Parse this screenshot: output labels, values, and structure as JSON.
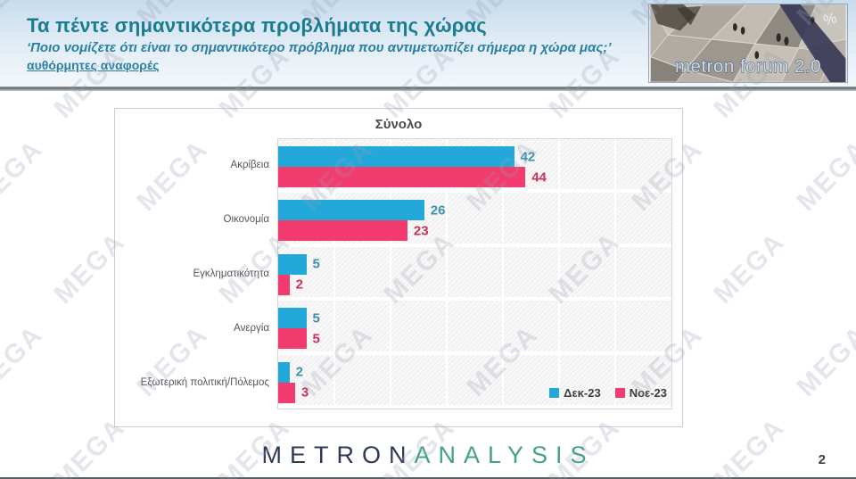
{
  "header": {
    "title": "Τα πέντε σημαντικότερα προβλήματα της χώρας",
    "subtitle": "‘Ποιο νομίζετε ότι είναι το σημαντικότερο πρόβλημα που αντιμετωπίζει σήμερα η χώρα μας;’",
    "note": "αυθόρμητες αναφορές",
    "brand": {
      "caption": "metron forum 2.0",
      "percent_symbol": "%"
    }
  },
  "chart_data": {
    "type": "bar",
    "orientation": "horizontal",
    "title": "Σύνολο",
    "categories": [
      "Ακρίβεια",
      "Οικονομία",
      "Εγκληματικότητα",
      "Ανεργία",
      "Εξωτερική πολιτική/Πόλεμος"
    ],
    "series": [
      {
        "name": "Δεκ-23",
        "color": "#22a9da",
        "label_color": "#3a92ae",
        "values": [
          42,
          26,
          5,
          5,
          2
        ]
      },
      {
        "name": "Νοε-23",
        "color": "#f23b6e",
        "label_color": "#ca3158",
        "values": [
          44,
          23,
          2,
          5,
          3
        ]
      }
    ],
    "xlim": [
      0,
      70
    ],
    "gridline_step": 10,
    "grid": true,
    "legend_position": "bottom-right"
  },
  "footer": {
    "logo_part1": "METRON",
    "logo_part2": "ANALYSIS",
    "page_number": "2"
  },
  "watermark": {
    "text": "MEGA"
  },
  "colors": {
    "series1": "#22a9da",
    "series2": "#f23b6e",
    "header_title": "#1b7b91",
    "header_subtitle": "#2b7fa3",
    "logo_navy": "#2e3a54",
    "logo_green": "#44a287"
  }
}
